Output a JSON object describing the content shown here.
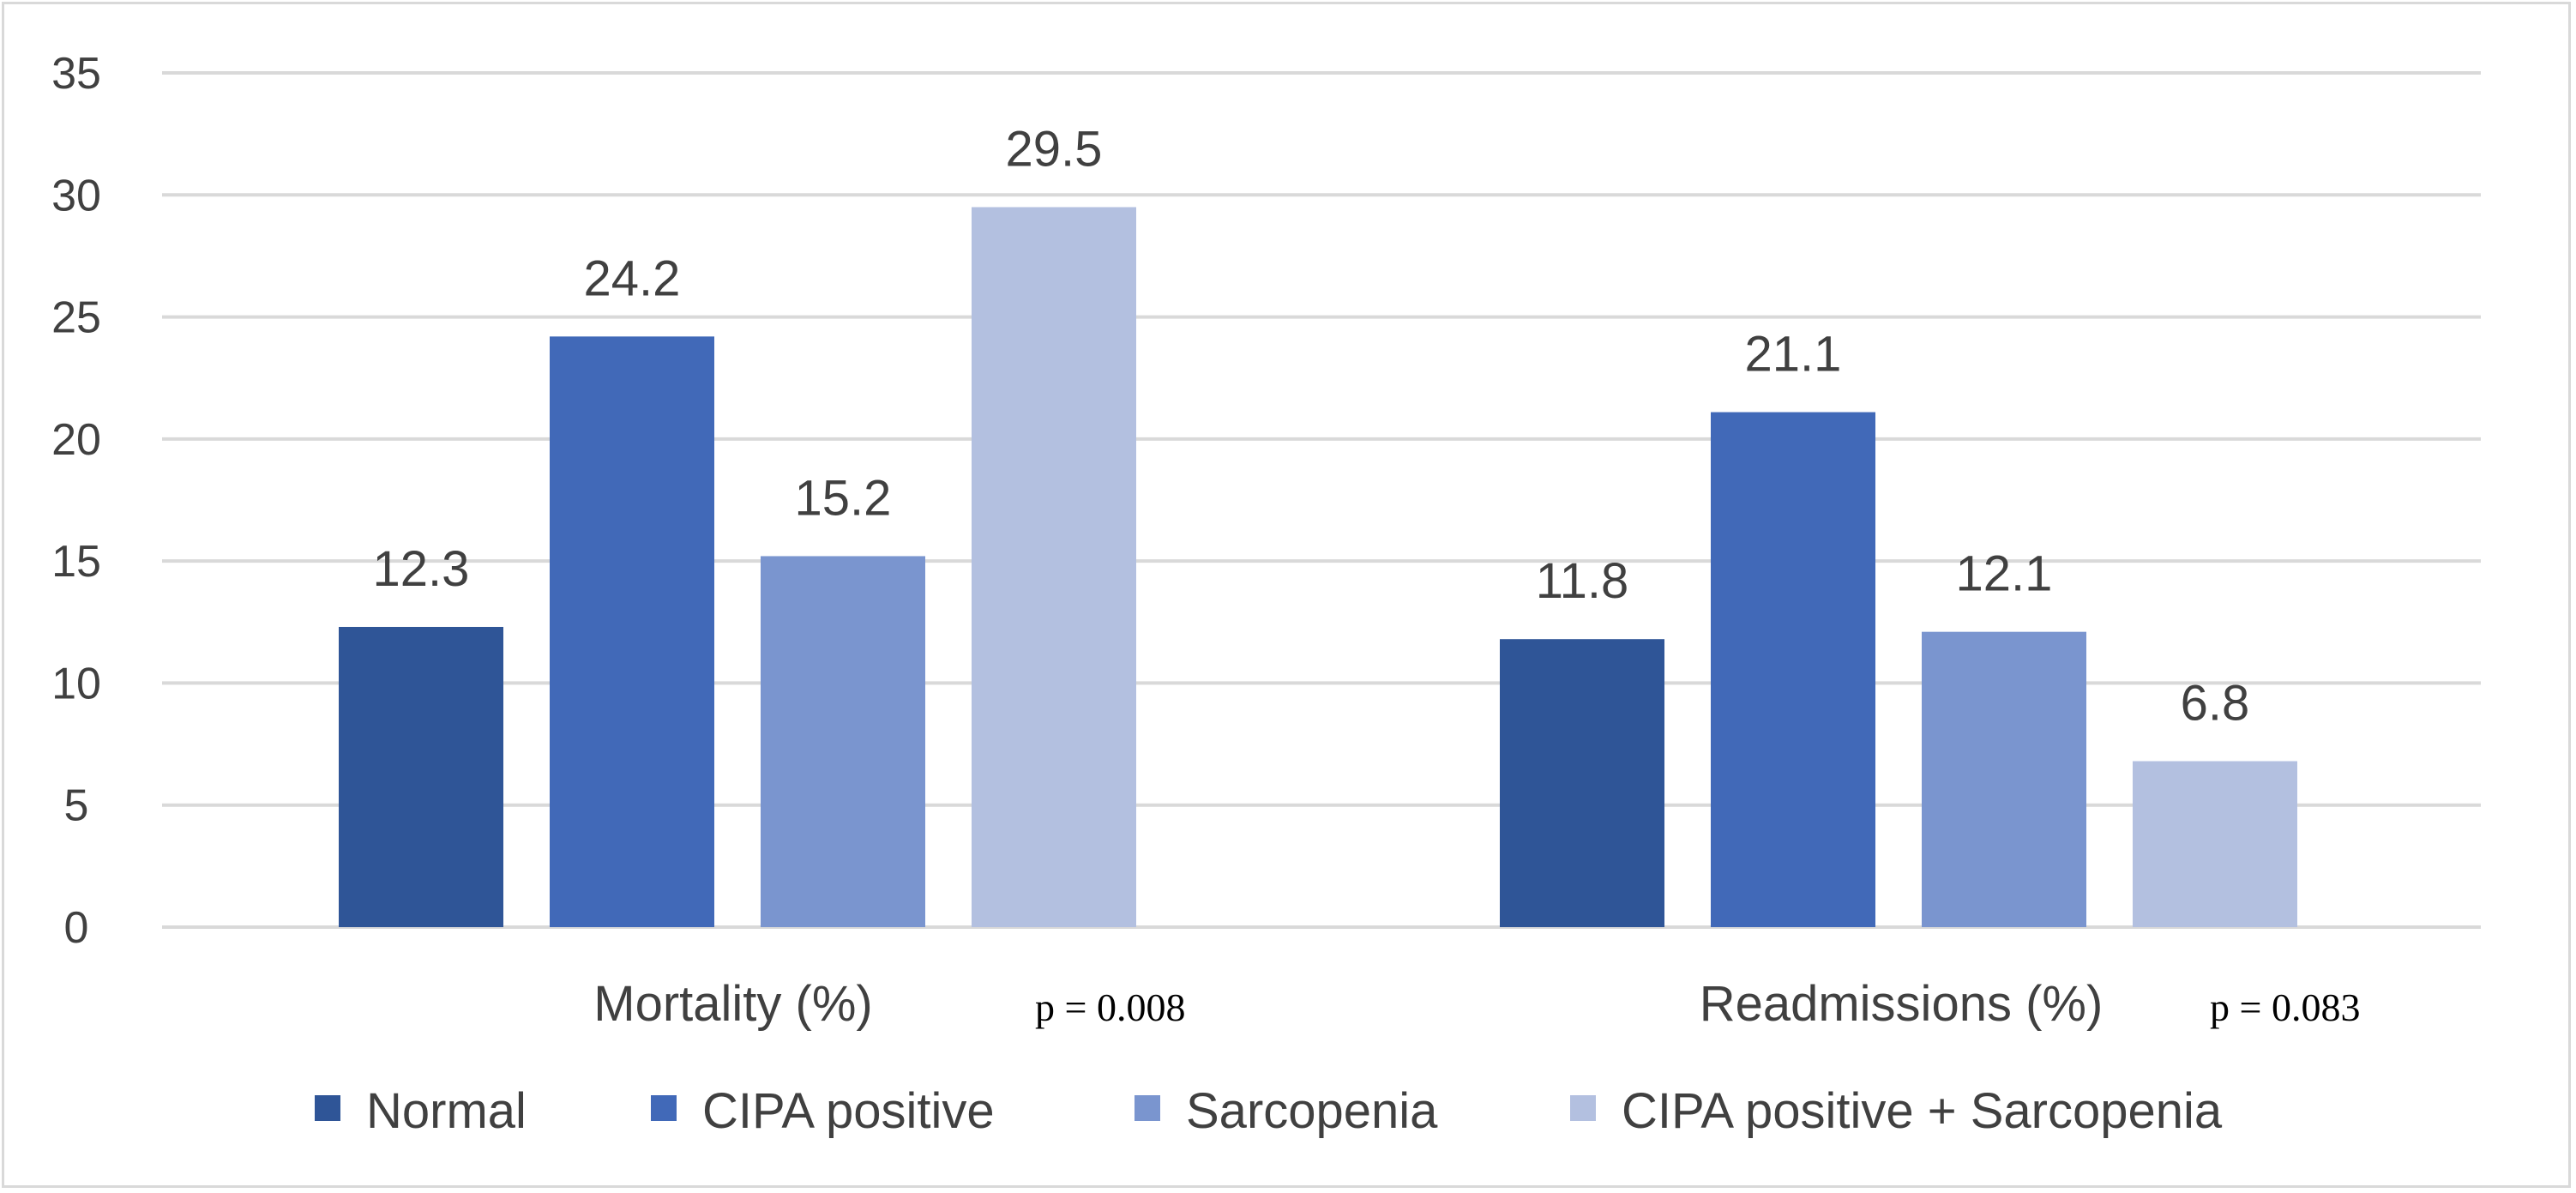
{
  "chart_data": {
    "type": "bar",
    "categories": [
      "Mortality (%)",
      "Readmissions (%)"
    ],
    "series": [
      {
        "name": "Normal",
        "values": [
          12.3,
          11.8
        ],
        "color": "#2F5597"
      },
      {
        "name": "CIPA positive",
        "values": [
          24.2,
          21.1
        ],
        "color": "#4169B8"
      },
      {
        "name": "Sarcopenia",
        "values": [
          15.2,
          12.1
        ],
        "color": "#7A95CF"
      },
      {
        "name": "CIPA positive + Sarcopenia",
        "values": [
          29.5,
          6.8
        ],
        "color": "#B3C0E0"
      }
    ],
    "data_labels": [
      [
        "12.3",
        "11.8"
      ],
      [
        "24.2",
        "21.1"
      ],
      [
        "15.2",
        "12.1"
      ],
      [
        "29.5",
        "6.8"
      ]
    ],
    "annotations": [
      "p = 0.008",
      "p = 0.083"
    ],
    "yticks": [
      "0",
      "5",
      "10",
      "15",
      "20",
      "25",
      "30",
      "35"
    ],
    "ylim": [
      0,
      35
    ],
    "grid": true,
    "legend_position": "bottom",
    "title": "",
    "xlabel": "",
    "ylabel": ""
  },
  "colors": {
    "gridline": "#d9d9d9",
    "text": "#404040",
    "border": "#d9d9d9"
  }
}
